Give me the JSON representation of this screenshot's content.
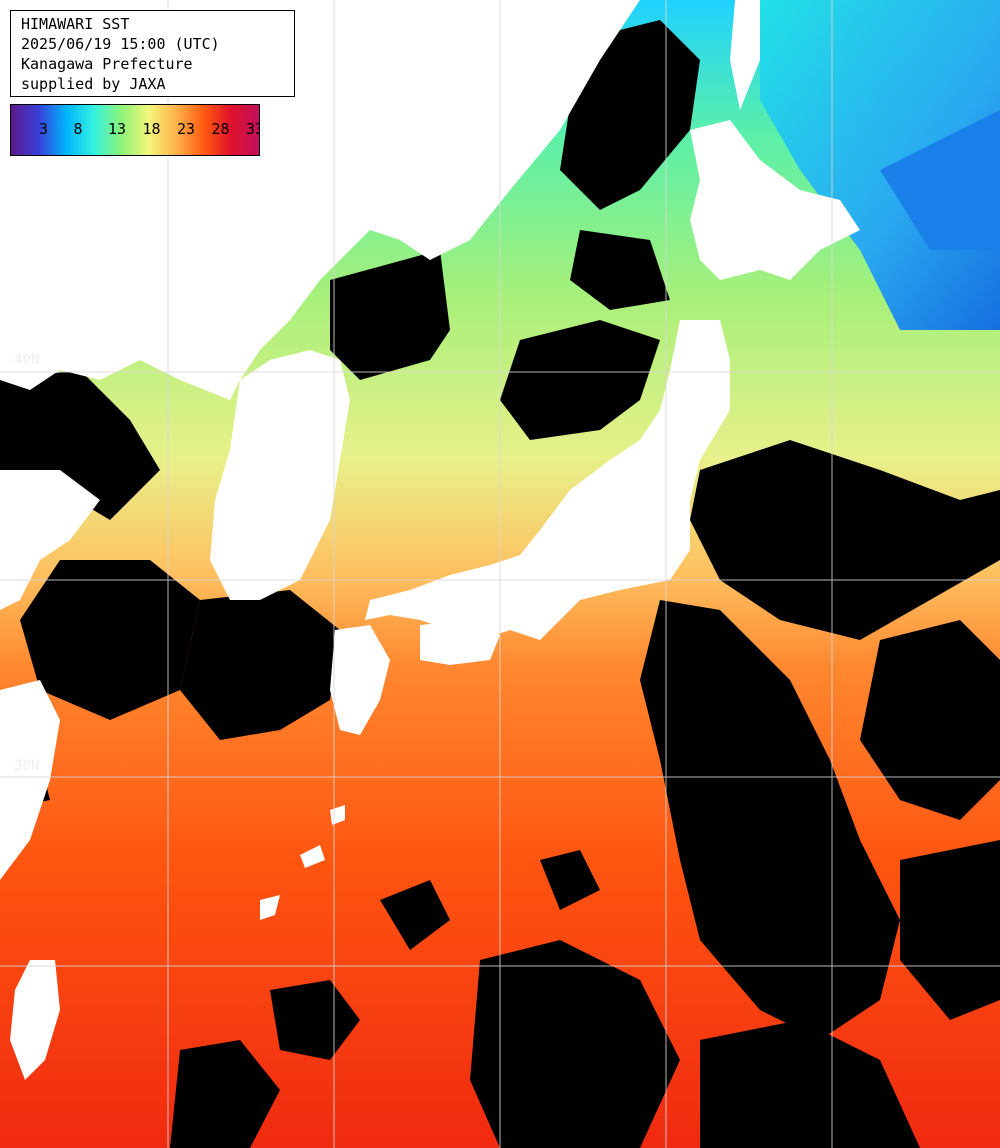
{
  "header": {
    "line1": "HIMAWARI SST",
    "line2": "2025/06/19 15:00 (UTC)",
    "line3": "Kanagawa Prefecture",
    "line4": "supplied by JAXA"
  },
  "colorbar": {
    "ticks": [
      "3",
      "8",
      "13",
      "18",
      "23",
      "28",
      "33"
    ],
    "unit_min": 0,
    "unit_max": 35,
    "stops": [
      "#5b1a8a",
      "#3a3fd8",
      "#00b4ff",
      "#33f0e0",
      "#8cf578",
      "#f2f57a",
      "#ffb24a",
      "#ff5a10",
      "#e0102e",
      "#c0105a"
    ]
  },
  "grid_labels": {
    "lat_40": "40N",
    "lat_30": "30N"
  },
  "colors": {
    "land": "#ffffff",
    "cloud": "#000000",
    "grid": "#d8d8d8",
    "sea_north": "#33e6d6",
    "sea_mid": "#b8f06a",
    "sea_south": "#ff5a14"
  }
}
